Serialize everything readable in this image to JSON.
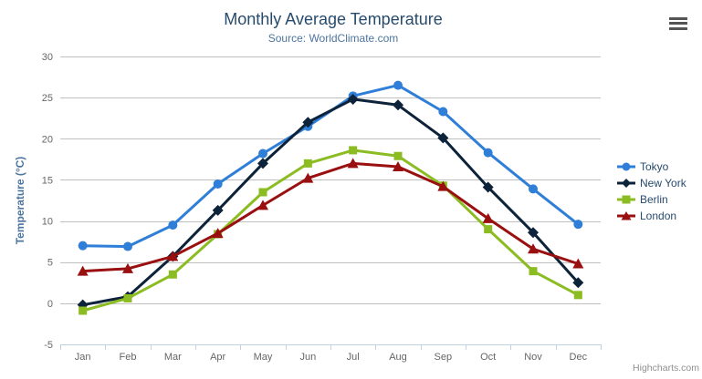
{
  "header": {
    "title": "Monthly Average Temperature",
    "subtitle": "Source: WorldClimate.com"
  },
  "menu": {
    "icon": "hamburger-icon"
  },
  "credits": {
    "label": "Highcharts.com"
  },
  "colors": {
    "title_text": "#274b6d",
    "subtitle_text": "#4d759e",
    "grid_line": "#c0c0c0",
    "axis_line": "#c0d0e0",
    "tick_mark": "#c0d0e0",
    "axis_label": "#666666",
    "axis_title": "#4d759e",
    "legend_text": "#274b6d",
    "credits_text": "#8f8f8f"
  },
  "chart_data": {
    "type": "line",
    "title": "Monthly Average Temperature",
    "subtitle": "Source: WorldClimate.com",
    "xlabel": "",
    "ylabel": "Temperature (°C)",
    "categories": [
      "Jan",
      "Feb",
      "Mar",
      "Apr",
      "May",
      "Jun",
      "Jul",
      "Aug",
      "Sep",
      "Oct",
      "Nov",
      "Dec"
    ],
    "ylim": [
      -5,
      30
    ],
    "y_ticks": [
      -5,
      0,
      5,
      10,
      15,
      20,
      25,
      30
    ],
    "grid": true,
    "legend_position": "right-middle",
    "series": [
      {
        "name": "Tokyo",
        "color": "#2f7ed8",
        "marker": "circle",
        "values": [
          7.0,
          6.9,
          9.5,
          14.5,
          18.2,
          21.5,
          25.2,
          26.5,
          23.3,
          18.3,
          13.9,
          9.6
        ]
      },
      {
        "name": "New York",
        "color": "#0d233a",
        "marker": "diamond",
        "values": [
          -0.2,
          0.8,
          5.7,
          11.3,
          17.0,
          22.0,
          24.8,
          24.1,
          20.1,
          14.1,
          8.6,
          2.5
        ]
      },
      {
        "name": "Berlin",
        "color": "#8bbc21",
        "marker": "square",
        "values": [
          -0.9,
          0.6,
          3.5,
          8.4,
          13.5,
          17.0,
          18.6,
          17.9,
          14.3,
          9.0,
          3.9,
          1.0
        ]
      },
      {
        "name": "London",
        "color": "#9a0f0f",
        "marker": "triangle",
        "values": [
          3.9,
          4.2,
          5.7,
          8.5,
          11.9,
          15.2,
          17.0,
          16.6,
          14.2,
          10.3,
          6.6,
          4.8
        ]
      }
    ]
  }
}
